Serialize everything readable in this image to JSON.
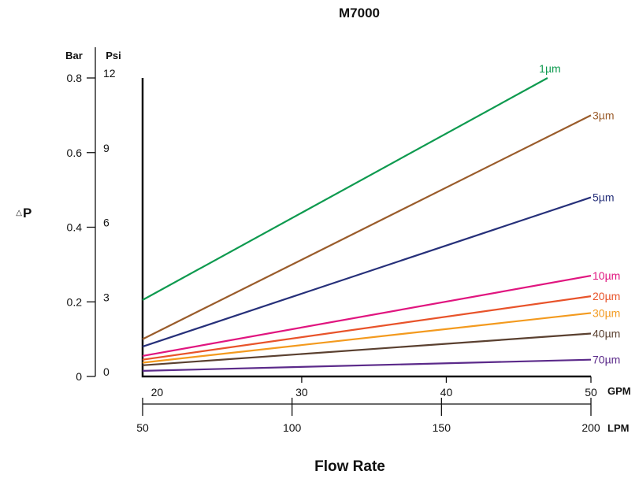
{
  "chart_data": {
    "type": "line",
    "title": "M7000",
    "xlabel": "Flow Rate",
    "ylabel": "P",
    "ylabel_symbol": "△",
    "y_units": {
      "left": "Bar",
      "right": "Psi"
    },
    "x_units": {
      "top": "GPM",
      "bottom": "LPM"
    },
    "ylim": [
      0,
      0.8
    ],
    "xlim": [
      19,
      50
    ],
    "y_ticks_bar": [
      "0",
      "0.2",
      "0.4",
      "0.6",
      "0.8"
    ],
    "y_ticks_psi": [
      "0",
      "3",
      "6",
      "9",
      "12"
    ],
    "x_ticks_gpm": [
      "20",
      "30",
      "40",
      "50"
    ],
    "x_ticks_lpm": [
      "50",
      "100",
      "150",
      "200"
    ],
    "grid": false,
    "legend": "inline-right",
    "series": [
      {
        "name": "1µm",
        "color": "#0e9a4f",
        "x": [
          19,
          47
        ],
        "y": [
          0.205,
          0.8
        ]
      },
      {
        "name": "3µm",
        "color": "#9a5c2b",
        "x": [
          19,
          50
        ],
        "y": [
          0.1,
          0.7
        ]
      },
      {
        "name": "5µm",
        "color": "#26307a",
        "x": [
          19,
          50
        ],
        "y": [
          0.08,
          0.48
        ]
      },
      {
        "name": "10µm",
        "color": "#e0157f",
        "x": [
          19,
          50
        ],
        "y": [
          0.055,
          0.27
        ]
      },
      {
        "name": "20µm",
        "color": "#e8532a",
        "x": [
          19,
          50
        ],
        "y": [
          0.045,
          0.215
        ]
      },
      {
        "name": "30µm",
        "color": "#f39a1e",
        "x": [
          19,
          50
        ],
        "y": [
          0.037,
          0.17
        ]
      },
      {
        "name": "40µm",
        "color": "#5a4030",
        "x": [
          19,
          50
        ],
        "y": [
          0.03,
          0.115
        ]
      },
      {
        "name": "70µm",
        "color": "#5b2a8a",
        "x": [
          19,
          50
        ],
        "y": [
          0.015,
          0.045
        ]
      }
    ]
  }
}
